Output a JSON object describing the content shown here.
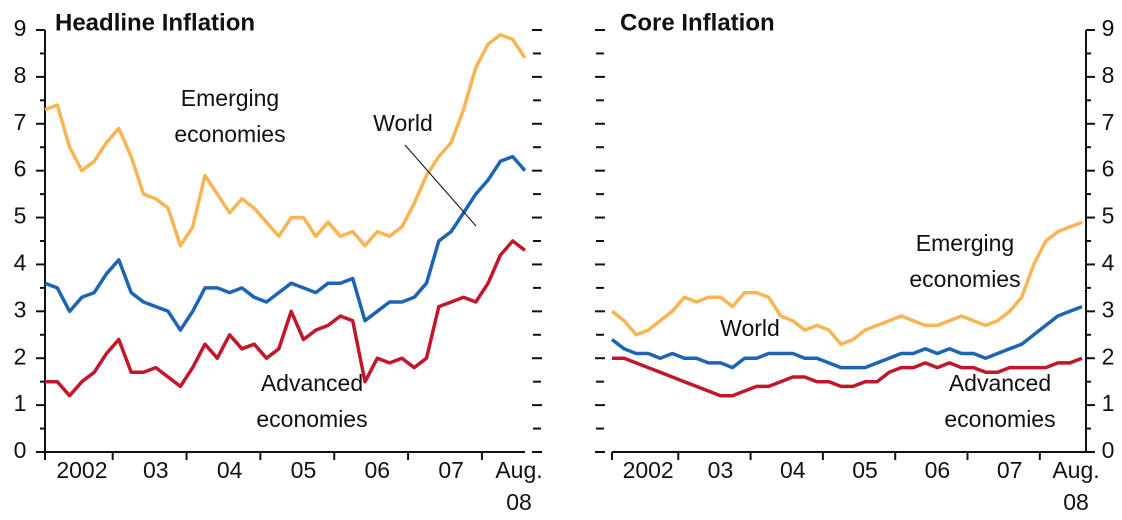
{
  "chart_data": [
    {
      "type": "line",
      "title": "Headline Inflation",
      "categories": [
        null,
        null,
        null,
        "2002",
        null,
        null,
        null,
        null,
        null,
        "03",
        null,
        null,
        null,
        null,
        null,
        "04",
        null,
        null,
        null,
        null,
        null,
        "05",
        null,
        null,
        null,
        null,
        null,
        "06",
        null,
        null,
        null,
        null,
        null,
        "07",
        null,
        null,
        null,
        null,
        null,
        "Aug. 08"
      ],
      "series": [
        {
          "name": "Emerging economies",
          "color": "#f9b454",
          "values": [
            7.3,
            7.4,
            6.5,
            6.0,
            6.2,
            6.6,
            6.9,
            6.3,
            5.5,
            5.4,
            5.2,
            4.4,
            4.8,
            5.9,
            5.5,
            5.1,
            5.4,
            5.2,
            4.9,
            4.6,
            5.0,
            5.0,
            4.6,
            4.9,
            4.6,
            4.7,
            4.4,
            4.7,
            4.6,
            4.8,
            5.3,
            5.9,
            6.3,
            6.6,
            7.3,
            8.2,
            8.7,
            8.9,
            8.8,
            8.4
          ]
        },
        {
          "name": "World",
          "color": "#1e64b4",
          "values": [
            3.6,
            3.5,
            3.0,
            3.3,
            3.4,
            3.8,
            4.1,
            3.4,
            3.2,
            3.1,
            3.0,
            2.6,
            3.0,
            3.5,
            3.5,
            3.4,
            3.5,
            3.3,
            3.2,
            3.4,
            3.6,
            3.5,
            3.4,
            3.6,
            3.6,
            3.7,
            2.8,
            3.0,
            3.2,
            3.2,
            3.3,
            3.6,
            4.5,
            4.7,
            5.1,
            5.5,
            5.8,
            6.2,
            6.3,
            6.0
          ]
        },
        {
          "name": "Advanced economies",
          "color": "#c0182a",
          "values": [
            1.5,
            1.5,
            1.2,
            1.5,
            1.7,
            2.1,
            2.4,
            1.7,
            1.7,
            1.8,
            1.6,
            1.4,
            1.8,
            2.3,
            2.0,
            2.5,
            2.2,
            2.3,
            2.0,
            2.2,
            3.0,
            2.4,
            2.6,
            2.7,
            2.9,
            2.8,
            1.5,
            2.0,
            1.9,
            2.0,
            1.8,
            2.0,
            3.1,
            3.2,
            3.3,
            3.2,
            3.6,
            4.2,
            4.5,
            4.3
          ]
        }
      ],
      "annotations": [
        [
          "Emerging",
          "economies"
        ],
        [
          "World"
        ],
        [
          "Advanced",
          "economies"
        ]
      ],
      "ylim": [
        0,
        9
      ],
      "yticks": [
        0,
        1,
        2,
        3,
        4,
        5,
        6,
        7,
        8,
        9
      ],
      "yaxis_side": "left"
    },
    {
      "type": "line",
      "title": "Core Inflation",
      "categories": [
        null,
        null,
        null,
        "2002",
        null,
        null,
        null,
        null,
        null,
        "03",
        null,
        null,
        null,
        null,
        null,
        "04",
        null,
        null,
        null,
        null,
        null,
        "05",
        null,
        null,
        null,
        null,
        null,
        "06",
        null,
        null,
        null,
        null,
        null,
        "07",
        null,
        null,
        null,
        null,
        null,
        "Aug. 08"
      ],
      "series": [
        {
          "name": "Emerging economies",
          "color": "#f9b454",
          "values": [
            3.0,
            2.8,
            2.5,
            2.6,
            2.8,
            3.0,
            3.3,
            3.2,
            3.3,
            3.3,
            3.1,
            3.4,
            3.4,
            3.3,
            2.9,
            2.8,
            2.6,
            2.7,
            2.6,
            2.3,
            2.4,
            2.6,
            2.7,
            2.8,
            2.9,
            2.8,
            2.7,
            2.7,
            2.8,
            2.9,
            2.8,
            2.7,
            2.8,
            3.0,
            3.3,
            4.0,
            4.5,
            4.7,
            4.8,
            4.9
          ]
        },
        {
          "name": "World",
          "color": "#1e64b4",
          "values": [
            2.4,
            2.2,
            2.1,
            2.1,
            2.0,
            2.1,
            2.0,
            2.0,
            1.9,
            1.9,
            1.8,
            2.0,
            2.0,
            2.1,
            2.1,
            2.1,
            2.0,
            2.0,
            1.9,
            1.8,
            1.8,
            1.8,
            1.9,
            2.0,
            2.1,
            2.1,
            2.2,
            2.1,
            2.2,
            2.1,
            2.1,
            2.0,
            2.1,
            2.2,
            2.3,
            2.5,
            2.7,
            2.9,
            3.0,
            3.1
          ]
        },
        {
          "name": "Advanced economies",
          "color": "#c0182a",
          "values": [
            2.0,
            2.0,
            1.9,
            1.8,
            1.7,
            1.6,
            1.5,
            1.4,
            1.3,
            1.2,
            1.2,
            1.3,
            1.4,
            1.4,
            1.5,
            1.6,
            1.6,
            1.5,
            1.5,
            1.4,
            1.4,
            1.5,
            1.5,
            1.7,
            1.8,
            1.8,
            1.9,
            1.8,
            1.9,
            1.8,
            1.8,
            1.7,
            1.7,
            1.8,
            1.8,
            1.8,
            1.8,
            1.9,
            1.9,
            2.0
          ]
        }
      ],
      "annotations": [
        [
          "Emerging",
          "economies"
        ],
        [
          "World"
        ],
        [
          "Advanced",
          "economies"
        ]
      ],
      "ylim": [
        0,
        9
      ],
      "yticks": [
        0,
        1,
        2,
        3,
        4,
        5,
        6,
        7,
        8,
        9
      ],
      "yaxis_side": "right"
    }
  ]
}
